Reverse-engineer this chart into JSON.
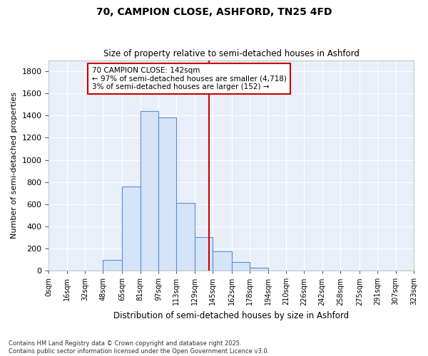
{
  "title_line1": "70, CAMPION CLOSE, ASHFORD, TN25 4FD",
  "title_line2": "Size of property relative to semi-detached houses in Ashford",
  "xlabel": "Distribution of semi-detached houses by size in Ashford",
  "ylabel": "Number of semi-detached properties",
  "footnote": "Contains HM Land Registry data © Crown copyright and database right 2025.\nContains public sector information licensed under the Open Government Licence v3.0.",
  "bin_labels": [
    "0sqm",
    "16sqm",
    "32sqm",
    "48sqm",
    "65sqm",
    "81sqm",
    "97sqm",
    "113sqm",
    "129sqm",
    "145sqm",
    "162sqm",
    "178sqm",
    "194sqm",
    "210sqm",
    "226sqm",
    "242sqm",
    "258sqm",
    "275sqm",
    "291sqm",
    "307sqm",
    "323sqm"
  ],
  "bin_edges": [
    0,
    16,
    32,
    48,
    65,
    81,
    97,
    113,
    129,
    145,
    162,
    178,
    194,
    210,
    226,
    242,
    258,
    275,
    291,
    307,
    323
  ],
  "bar_heights": [
    0,
    0,
    0,
    100,
    760,
    1440,
    1380,
    610,
    300,
    175,
    80,
    25,
    0,
    0,
    0,
    0,
    0,
    0,
    0,
    0
  ],
  "bar_color": "#d6e4f7",
  "bar_edge_color": "#5b8dd9",
  "property_size": 142,
  "property_line_color": "#cc0000",
  "annotation_text": "70 CAMPION CLOSE: 142sqm\n← 97% of semi-detached houses are smaller (4,718)\n3% of semi-detached houses are larger (152) →",
  "annotation_box_facecolor": "#ffffff",
  "annotation_box_edgecolor": "#cc0000",
  "ylim": [
    0,
    1900
  ],
  "yticks": [
    0,
    200,
    400,
    600,
    800,
    1000,
    1200,
    1400,
    1600,
    1800
  ],
  "plot_bg_color": "#e8eff8",
  "fig_bg_color": "#ffffff",
  "grid_color": "#ffffff"
}
